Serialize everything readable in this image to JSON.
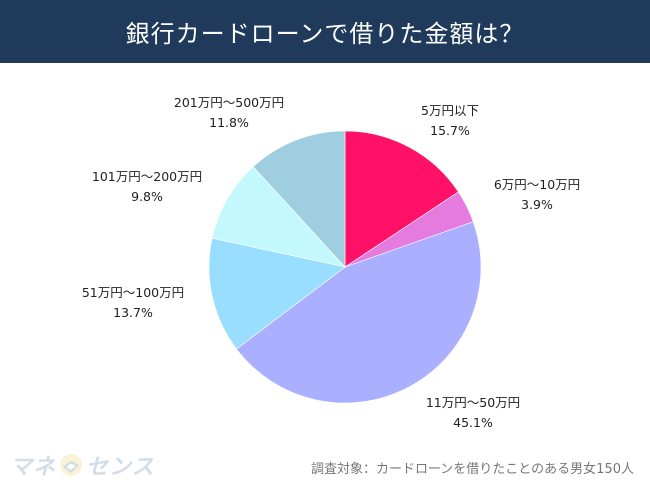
{
  "header": {
    "title": "銀行カードローンで借りた金額は？"
  },
  "footer": {
    "note": "調査対象：カードローンを借りたことのある男女150人",
    "logo_text_a": "マネ",
    "logo_text_b": "センス",
    "logo_icon": "coin-book-icon"
  },
  "colors": {
    "title_bg": "#1F3A5A",
    "title_text": "#FFFFFF"
  },
  "chart_data": {
    "type": "pie",
    "title": "銀行カードローンで借りた金額は？",
    "start": "12 o'clock",
    "direction": "clockwise",
    "legend": "none",
    "slices": [
      {
        "label": "5万円以下",
        "value": 15.7,
        "display": "15.7%",
        "color": "#FF1167"
      },
      {
        "label": "6万円～10万円",
        "value": 3.9,
        "display": "3.9%",
        "color": "#E57ADF"
      },
      {
        "label": "11万円～50万円",
        "value": 45.1,
        "display": "45.1%",
        "color": "#AAB0FF"
      },
      {
        "label": "51万円～100万円",
        "value": 13.7,
        "display": "13.7%",
        "color": "#99DDFF"
      },
      {
        "label": "101万円～200万円",
        "value": 9.8,
        "display": "9.8%",
        "color": "#C2F8FE"
      },
      {
        "label": "201万円～500万円",
        "value": 11.8,
        "display": "11.8%",
        "color": "#9ECEE0"
      }
    ]
  }
}
